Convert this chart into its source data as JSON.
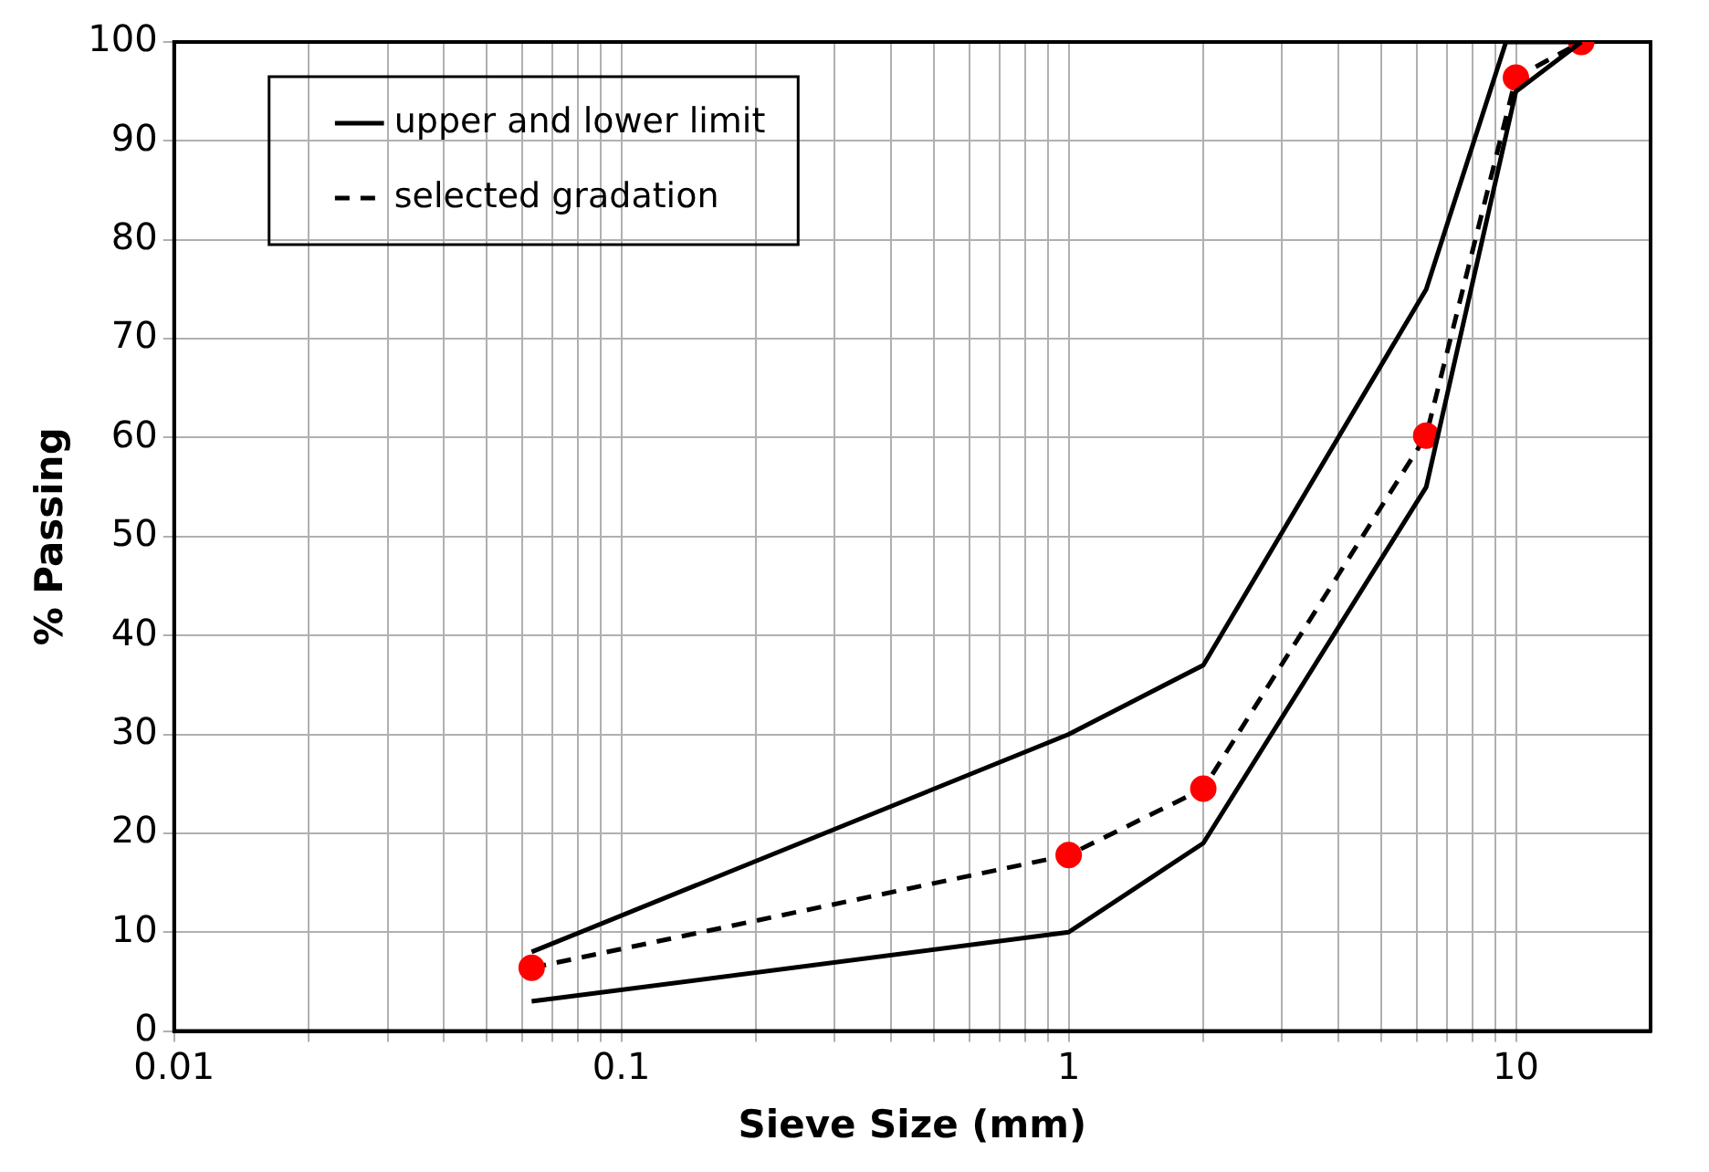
{
  "chart_data": {
    "type": "line",
    "xlabel": "Sieve Size (mm)",
    "ylabel": "% Passing",
    "log": "x",
    "grid": true,
    "legend": "top left",
    "xlim": [
      0.01,
      20
    ],
    "ylim": [
      0,
      100
    ],
    "xticks": [
      0.01,
      {
        "value": 0.02,
        "label": null
      },
      {
        "value": 0.03,
        "label": null
      },
      {
        "value": 0.04,
        "label": null
      },
      {
        "value": 0.05,
        "label": null
      },
      {
        "value": 0.06,
        "label": null
      },
      {
        "value": 0.07,
        "label": null
      },
      {
        "value": 0.08,
        "label": null
      },
      {
        "value": 0.09,
        "label": null
      },
      0.1,
      {
        "value": 0.2,
        "label": null
      },
      {
        "value": 0.3,
        "label": null
      },
      {
        "value": 0.4,
        "label": null
      },
      {
        "value": 0.5,
        "label": null
      },
      {
        "value": 0.6,
        "label": null
      },
      {
        "value": 0.7,
        "label": null
      },
      {
        "value": 0.8,
        "label": null
      },
      {
        "value": 0.9,
        "label": null
      },
      1,
      {
        "value": 2,
        "label": null
      },
      {
        "value": 3,
        "label": null
      },
      {
        "value": 4,
        "label": null
      },
      {
        "value": 5,
        "label": null
      },
      {
        "value": 6,
        "label": null
      },
      {
        "value": 7,
        "label": null
      },
      {
        "value": 8,
        "label": null
      },
      {
        "value": 9,
        "label": null
      },
      10
    ],
    "yticks": [
      0,
      10,
      20,
      30,
      40,
      50,
      60,
      70,
      80,
      90,
      100
    ],
    "series": [
      {
        "name": "upper and lower limit",
        "color": "#000000",
        "marker": "none",
        "line_style": "solid",
        "x": [
          0.063,
          1,
          2,
          6.3,
          9.5,
          14
        ],
        "values": [
          8,
          30,
          37,
          75,
          100,
          100
        ]
      },
      {
        "color": "#000000",
        "marker": "none",
        "line_style": "solid",
        "x": [
          0.063,
          1,
          2,
          6.3,
          10,
          14
        ],
        "values": [
          3,
          10,
          19,
          55,
          95,
          100
        ]
      },
      {
        "name": "selected gradation",
        "color": "#000000",
        "marker": "circle",
        "colors": [
          "#ff0000",
          "#ff0000",
          "#ff0000",
          "#ff0000",
          "#ff0000",
          "#ff0000"
        ],
        "line_style": "dashed",
        "x": [
          0.063,
          1,
          2,
          6.3,
          10,
          14
        ],
        "values": [
          6.4,
          17.8,
          24.5,
          60.2,
          96.4,
          100
        ]
      }
    ]
  }
}
